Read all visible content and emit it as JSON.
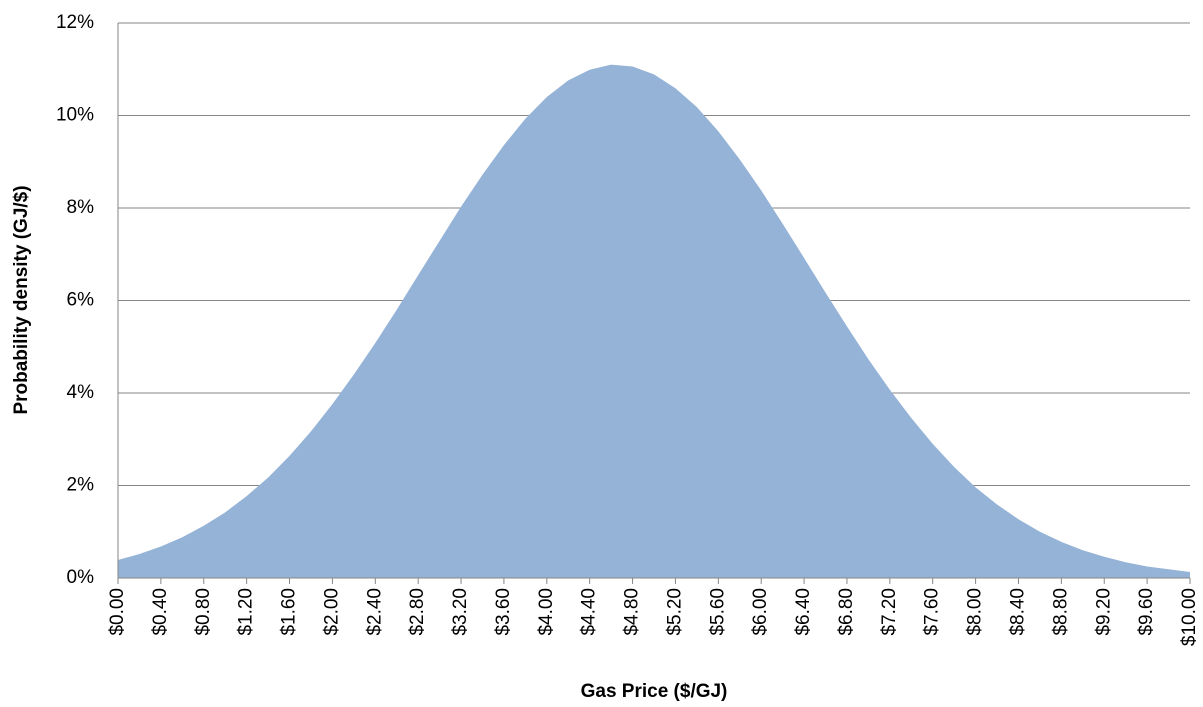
{
  "chart_data": {
    "type": "area",
    "xlabel": "Gas Price ($/GJ)",
    "ylabel": "Probability density (GJ/$)",
    "color": "#95b3d7",
    "grid": true,
    "x": [
      0,
      0.2,
      0.4,
      0.6,
      0.8,
      1.0,
      1.2,
      1.4,
      1.6,
      1.8,
      2.0,
      2.2,
      2.4,
      2.6,
      2.8,
      3.0,
      3.2,
      3.4,
      3.6,
      3.8,
      4.0,
      4.2,
      4.4,
      4.6,
      4.8,
      5.0,
      5.2,
      5.4,
      5.6,
      5.8,
      6.0,
      6.2,
      6.4,
      6.6,
      6.8,
      7.0,
      7.2,
      7.4,
      7.6,
      7.8,
      8.0,
      8.2,
      8.4,
      8.6,
      8.8,
      9.0,
      9.2,
      9.4,
      9.6,
      9.8,
      10.0
    ],
    "values": [
      0.39,
      0.52,
      0.68,
      0.88,
      1.13,
      1.42,
      1.77,
      2.17,
      2.64,
      3.17,
      3.76,
      4.4,
      5.08,
      5.8,
      6.55,
      7.29,
      8.03,
      8.72,
      9.36,
      9.93,
      10.4,
      10.76,
      10.99,
      11.1,
      11.06,
      10.89,
      10.59,
      10.18,
      9.66,
      9.05,
      8.38,
      7.66,
      6.92,
      6.17,
      5.44,
      4.73,
      4.07,
      3.46,
      2.9,
      2.4,
      1.96,
      1.59,
      1.27,
      1.0,
      0.78,
      0.6,
      0.46,
      0.34,
      0.25,
      0.19,
      0.13
    ],
    "xlim": [
      0,
      10
    ],
    "xticks": [
      {
        "value": 0,
        "label": "$0.00"
      },
      {
        "value": 0.4,
        "label": "$0.40"
      },
      {
        "value": 0.8,
        "label": "$0.80"
      },
      {
        "value": 1.2,
        "label": "$1.20"
      },
      {
        "value": 1.6,
        "label": "$1.60"
      },
      {
        "value": 2.0,
        "label": "$2.00"
      },
      {
        "value": 2.4,
        "label": "$2.40"
      },
      {
        "value": 2.8,
        "label": "$2.80"
      },
      {
        "value": 3.2,
        "label": "$3.20"
      },
      {
        "value": 3.6,
        "label": "$3.60"
      },
      {
        "value": 4.0,
        "label": "$4.00"
      },
      {
        "value": 4.4,
        "label": "$4.40"
      },
      {
        "value": 4.8,
        "label": "$4.80"
      },
      {
        "value": 5.2,
        "label": "$5.20"
      },
      {
        "value": 5.6,
        "label": "$5.60"
      },
      {
        "value": 6.0,
        "label": "$6.00"
      },
      {
        "value": 6.4,
        "label": "$6.40"
      },
      {
        "value": 6.8,
        "label": "$6.80"
      },
      {
        "value": 7.2,
        "label": "$7.20"
      },
      {
        "value": 7.6,
        "label": "$7.60"
      },
      {
        "value": 8.0,
        "label": "$8.00"
      },
      {
        "value": 8.4,
        "label": "$8.40"
      },
      {
        "value": 8.8,
        "label": "$8.80"
      },
      {
        "value": 9.2,
        "label": "$9.20"
      },
      {
        "value": 9.6,
        "label": "$9.60"
      },
      {
        "value": 10.0,
        "label": "$10.00"
      }
    ],
    "ylim": [
      0,
      12
    ],
    "yticks": [
      {
        "value": 0,
        "label": "0%"
      },
      {
        "value": 2,
        "label": "2%"
      },
      {
        "value": 4,
        "label": "4%"
      },
      {
        "value": 6,
        "label": "6%"
      },
      {
        "value": 8,
        "label": "8%"
      },
      {
        "value": 10,
        "label": "10%"
      },
      {
        "value": 12,
        "label": "12%"
      }
    ]
  }
}
